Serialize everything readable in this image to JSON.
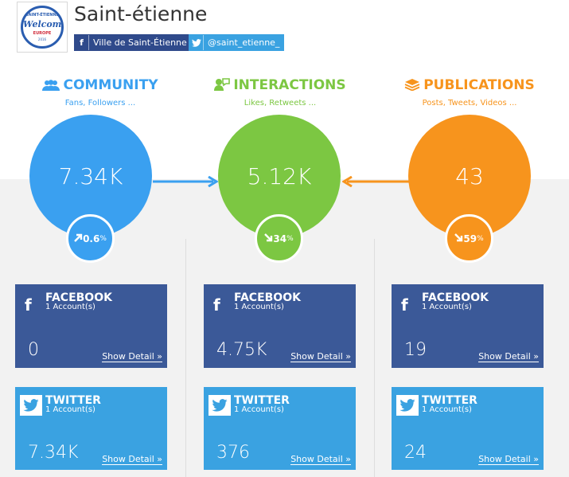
{
  "header": {
    "title": "Saint-étienne",
    "logo": {
      "top": "SAINT-ÉTIENNE",
      "main": "Welcomes",
      "sub": "EUROPE",
      "year": "2016"
    },
    "accounts": {
      "facebook": {
        "icon": "facebook-icon",
        "label": "Ville de Saint-Étienne"
      },
      "twitter": {
        "icon": "twitter-icon",
        "label": "@saint_etienne_"
      }
    }
  },
  "metrics": {
    "community": {
      "title": "COMMUNITY",
      "subtitle": "Fans, Followers ...",
      "icon": "people-icon",
      "color": "#3aa0f0",
      "value": "7.34K",
      "change": "0.6",
      "change_unit": "%",
      "direction": "up"
    },
    "interactions": {
      "title": "INTERACTIONS",
      "subtitle": "Likes, Retweets ...",
      "icon": "people-interaction-icon",
      "color": "#7cc742",
      "value": "5.12K",
      "change": "34",
      "change_unit": "%",
      "direction": "down"
    },
    "publications": {
      "title": "PUBLICATIONS",
      "subtitle": "Posts, Tweets, Videos ...",
      "icon": "stack-icon",
      "color": "#f7941d",
      "value": "43",
      "change": "59",
      "change_unit": "%",
      "direction": "down"
    }
  },
  "cards": {
    "community": {
      "facebook": {
        "title": "FACEBOOK",
        "accounts": "1 Account(s)",
        "value": "0",
        "detail": "Show Detail »"
      },
      "twitter": {
        "title": "TWITTER",
        "accounts": "1 Account(s)",
        "value": "7.34K",
        "detail": "Show Detail »"
      }
    },
    "interactions": {
      "facebook": {
        "title": "FACEBOOK",
        "accounts": "1 Account(s)",
        "value": "4.75K",
        "detail": "Show Detail »"
      },
      "twitter": {
        "title": "TWITTER",
        "accounts": "1 Account(s)",
        "value": "376",
        "detail": "Show Detail »"
      }
    },
    "publications": {
      "facebook": {
        "title": "FACEBOOK",
        "accounts": "1 Account(s)",
        "value": "19",
        "detail": "Show Detail »"
      },
      "twitter": {
        "title": "TWITTER",
        "accounts": "1 Account(s)",
        "value": "24",
        "detail": "Show Detail »"
      }
    }
  },
  "colors": {
    "facebook": "#3b5998",
    "twitter": "#3aa2e1",
    "band": "#f2f2f2"
  }
}
